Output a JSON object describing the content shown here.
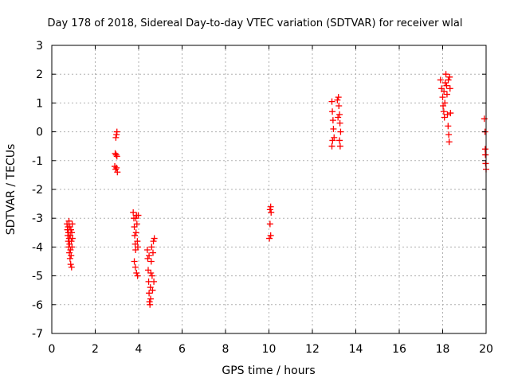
{
  "chart_data": {
    "type": "scatter",
    "title": "Day 178 of 2018, Sidereal Day-to-day VTEC variation (SDTVAR) for receiver wlal",
    "xlabel": "GPS time / hours",
    "ylabel": "SDTVAR / TECUs",
    "xlim": [
      0,
      20
    ],
    "ylim": [
      -7,
      3
    ],
    "xticks": [
      0,
      2,
      4,
      6,
      8,
      10,
      12,
      14,
      16,
      18,
      20
    ],
    "yticks": [
      -7,
      -6,
      -5,
      -4,
      -3,
      -2,
      -1,
      0,
      1,
      2,
      3
    ],
    "grid": true,
    "legend": "none",
    "marker": "+",
    "marker_color": "#ff0000",
    "series": [
      {
        "name": "SDTVAR",
        "points": [
          [
            0.7,
            -3.2
          ],
          [
            0.72,
            -3.4
          ],
          [
            0.74,
            -3.6
          ],
          [
            0.75,
            -3.3
          ],
          [
            0.76,
            -3.8
          ],
          [
            0.77,
            -3.5
          ],
          [
            0.78,
            -4.0
          ],
          [
            0.79,
            -3.1
          ],
          [
            0.8,
            -3.7
          ],
          [
            0.81,
            -4.2
          ],
          [
            0.82,
            -3.9
          ],
          [
            0.83,
            -3.3
          ],
          [
            0.84,
            -4.4
          ],
          [
            0.85,
            -3.6
          ],
          [
            0.86,
            -4.1
          ],
          [
            0.87,
            -4.6
          ],
          [
            0.88,
            -3.4
          ],
          [
            0.89,
            -4.3
          ],
          [
            0.9,
            -3.8
          ],
          [
            0.91,
            -4.7
          ],
          [
            0.92,
            -3.5
          ],
          [
            0.93,
            -4.0
          ],
          [
            0.94,
            -3.2
          ],
          [
            0.95,
            -3.7
          ],
          [
            2.95,
            -0.2
          ],
          [
            2.98,
            -0.1
          ],
          [
            3.0,
            0.0
          ],
          [
            2.92,
            -0.75
          ],
          [
            2.96,
            -0.8
          ],
          [
            3.0,
            -0.85
          ],
          [
            2.9,
            -1.2
          ],
          [
            2.94,
            -1.3
          ],
          [
            2.98,
            -1.25
          ],
          [
            3.02,
            -1.4
          ],
          [
            3.75,
            -2.8
          ],
          [
            3.78,
            -3.0
          ],
          [
            3.8,
            -3.3
          ],
          [
            3.82,
            -3.6
          ],
          [
            3.84,
            -3.9
          ],
          [
            3.86,
            -4.1
          ],
          [
            3.88,
            -3.5
          ],
          [
            3.9,
            -2.9
          ],
          [
            3.92,
            -3.2
          ],
          [
            3.94,
            -3.8
          ],
          [
            3.96,
            -4.0
          ],
          [
            3.98,
            -2.9
          ],
          [
            3.8,
            -4.5
          ],
          [
            3.85,
            -4.7
          ],
          [
            3.9,
            -4.9
          ],
          [
            3.95,
            -5.0
          ],
          [
            3.87,
            -3.0
          ],
          [
            4.4,
            -4.1
          ],
          [
            4.42,
            -4.4
          ],
          [
            4.44,
            -4.8
          ],
          [
            4.46,
            -5.2
          ],
          [
            4.48,
            -5.6
          ],
          [
            4.5,
            -5.9
          ],
          [
            4.52,
            -6.0
          ],
          [
            4.54,
            -5.4
          ],
          [
            4.56,
            -4.9
          ],
          [
            4.58,
            -4.5
          ],
          [
            4.6,
            -4.0
          ],
          [
            4.62,
            -5.0
          ],
          [
            4.64,
            -5.5
          ],
          [
            4.66,
            -4.2
          ],
          [
            4.68,
            -3.8
          ],
          [
            4.7,
            -5.2
          ],
          [
            4.72,
            -3.7
          ],
          [
            4.55,
            -5.8
          ],
          [
            4.48,
            -4.3
          ],
          [
            10.05,
            -2.7
          ],
          [
            10.08,
            -2.6
          ],
          [
            10.1,
            -2.8
          ],
          [
            10.05,
            -3.2
          ],
          [
            10.08,
            -3.6
          ],
          [
            10.02,
            -3.7
          ],
          [
            12.9,
            1.05
          ],
          [
            12.92,
            0.7
          ],
          [
            12.95,
            0.4
          ],
          [
            12.97,
            0.1
          ],
          [
            13.0,
            -0.2
          ],
          [
            12.9,
            -0.5
          ],
          [
            12.93,
            -0.3
          ],
          [
            13.2,
            1.2
          ],
          [
            13.22,
            0.9
          ],
          [
            13.25,
            0.6
          ],
          [
            13.27,
            0.3
          ],
          [
            13.3,
            0.0
          ],
          [
            13.25,
            -0.3
          ],
          [
            13.28,
            -0.5
          ],
          [
            13.15,
            1.1
          ],
          [
            13.18,
            0.5
          ],
          [
            17.9,
            1.8
          ],
          [
            17.95,
            1.5
          ],
          [
            18.0,
            1.2
          ],
          [
            18.02,
            0.9
          ],
          [
            18.05,
            0.7
          ],
          [
            18.08,
            0.5
          ],
          [
            18.1,
            1.0
          ],
          [
            18.12,
            1.7
          ],
          [
            18.15,
            2.0
          ],
          [
            18.18,
            1.6
          ],
          [
            18.2,
            1.3
          ],
          [
            18.22,
            0.6
          ],
          [
            18.25,
            0.2
          ],
          [
            18.28,
            -0.1
          ],
          [
            18.3,
            -0.35
          ],
          [
            18.32,
            1.9
          ],
          [
            18.34,
            1.5
          ],
          [
            18.36,
            0.65
          ],
          [
            18.26,
            1.8
          ],
          [
            18.06,
            1.4
          ],
          [
            19.92,
            0.45
          ],
          [
            19.95,
            0.0
          ],
          [
            19.96,
            -0.6
          ],
          [
            19.98,
            -1.1
          ],
          [
            20.0,
            -1.3
          ],
          [
            19.97,
            -0.8
          ]
        ]
      }
    ]
  }
}
